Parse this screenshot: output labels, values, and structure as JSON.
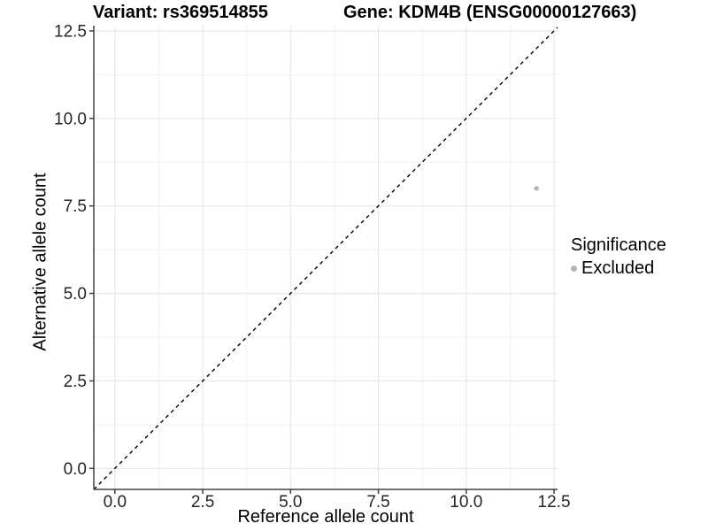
{
  "chart_data": {
    "type": "scatter",
    "title_left": "Variant: rs369514855",
    "title_right": "Gene: KDM4B (ENSG00000127663)",
    "xlabel": "Reference allele count",
    "ylabel": "Alternative allele count",
    "xlim": [
      -0.6,
      12.6
    ],
    "ylim": [
      -0.6,
      12.65
    ],
    "xticks": [
      0,
      2.5,
      5,
      7.5,
      10,
      12.5
    ],
    "xtick_labels": [
      "0.0",
      "2.5",
      "5.0",
      "7.5",
      "10.0",
      "12.5"
    ],
    "yticks": [
      0,
      2.5,
      5,
      7.5,
      10,
      12.5
    ],
    "ytick_labels": [
      "0.0",
      "2.5",
      "5.0",
      "7.5",
      "10.0",
      "12.5"
    ],
    "minor_xticks": [
      1.25,
      3.75,
      6.25,
      8.75,
      11.25
    ],
    "minor_yticks": [
      1.25,
      3.75,
      6.25,
      8.75,
      11.25
    ],
    "grid": "major+minor",
    "identity_line": {
      "equation": "y = x",
      "style": "dashed",
      "color": "#000000"
    },
    "series": [
      {
        "name": "Excluded",
        "color": "#b4b4b4",
        "points": [
          {
            "x": 12,
            "y": 8
          }
        ]
      }
    ],
    "legend_title": "Significance",
    "legend_position": "right"
  },
  "colors": {
    "background": "#ffffff",
    "grid_major": "#e7e7e7",
    "grid_minor": "#f1f1f1",
    "axis": "#404040",
    "tick_text": "#262626"
  }
}
